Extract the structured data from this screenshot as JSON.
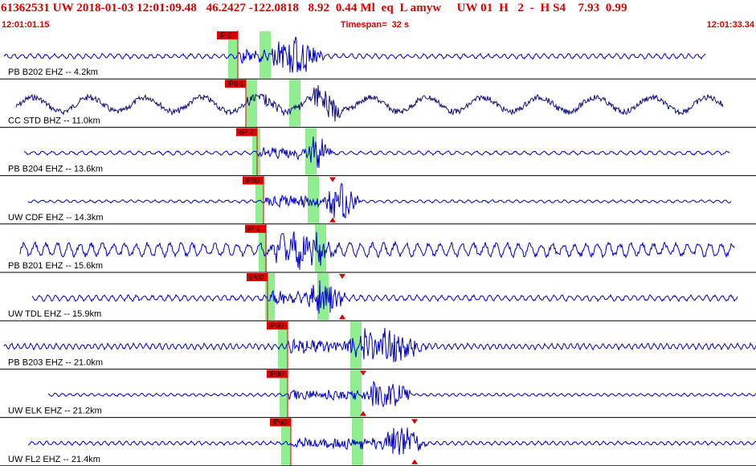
{
  "header": {
    "title": "61362531 UW 2018-01-03 12:01:09.48   46.2427 -122.0818   8.92  0.44 Ml  eq  L amyw     UW 01  H   2  -  H S4    7.93  0.99",
    "start_time": "12:01:01.15",
    "timespan": "Timespan=  32 s",
    "end_time": "12:01:33.34"
  },
  "colors": {
    "trace": "#0000cc",
    "trace_dark": "#10107a",
    "pick": "#e00000",
    "window": "#90ee90",
    "text_red": "#e00000",
    "divider": "#000000"
  },
  "panels": [
    {
      "label": "PB B202 EHZ -- 4.2km",
      "pick_label": "iP 0",
      "color": "trace",
      "seed": 3
    },
    {
      "label": "CC STD BHZ -- 11.0km",
      "pick_label": "iPd 1",
      "color": "trace_dark",
      "seed": 7
    },
    {
      "label": "PB B204 EHZ -- 13.6km",
      "pick_label": "eP 2",
      "color": "trace",
      "seed": 11
    },
    {
      "label": "UW CDF EHZ -- 14.3km",
      "pick_label": "iPd0",
      "color": "trace",
      "seed": 13
    },
    {
      "label": "PB B201 EHZ -- 15.6km",
      "pick_label": "iP 1",
      "color": "trace",
      "seed": 17
    },
    {
      "label": "UW TDL EHZ -- 15.9km",
      "pick_label": "iPd0",
      "color": "trace",
      "seed": 19
    },
    {
      "label": "PB B203 EHZ -- 21.0km",
      "pick_label": "iPd0",
      "color": "trace",
      "seed": 23
    },
    {
      "label": "UW ELK EHZ -- 21.2km",
      "pick_label": "iPd0",
      "color": "trace",
      "seed": 29
    },
    {
      "label": "UW FL2 EHZ -- 21.4km",
      "pick_label": "iPu0",
      "color": "trace",
      "seed": 31
    }
  ]
}
